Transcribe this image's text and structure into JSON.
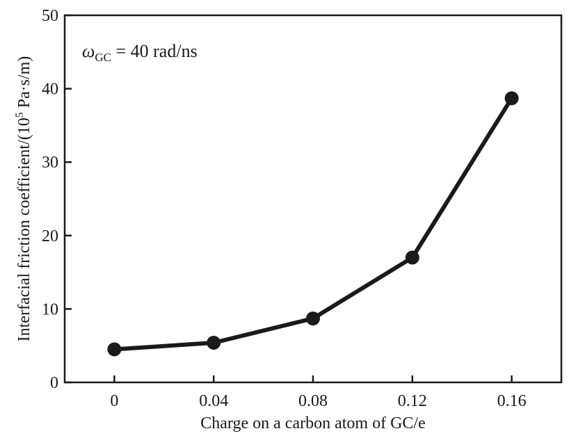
{
  "chart_data": {
    "type": "line",
    "title": "",
    "xlabel": "Charge on a carbon atom of GC/e",
    "ylabel": {
      "prefix": "Interfacial friction coefficient/(10",
      "superscript": "5",
      "suffix": " Pa·s/m)"
    },
    "x_tick_labels": [
      "0",
      "0.04",
      "0.08",
      "0.12",
      "0.16"
    ],
    "y_tick_labels": [
      "0",
      "10",
      "20",
      "30",
      "40",
      "50"
    ],
    "x": [
      0,
      0.04,
      0.08,
      0.12,
      0.16
    ],
    "y": [
      4.5,
      5.4,
      8.7,
      17.0,
      38.7
    ],
    "xlim": [
      -0.02,
      0.18
    ],
    "ylim": [
      0,
      50
    ],
    "x_ticks": [
      0,
      0.04,
      0.08,
      0.12,
      0.16
    ],
    "y_ticks": [
      0,
      10,
      20,
      30,
      40,
      50
    ],
    "grid": false,
    "annotation": {
      "symbol": "ω",
      "subscript": "GC",
      "text": " = 40 rad/ns"
    },
    "series_color": "#1a1a1a"
  }
}
